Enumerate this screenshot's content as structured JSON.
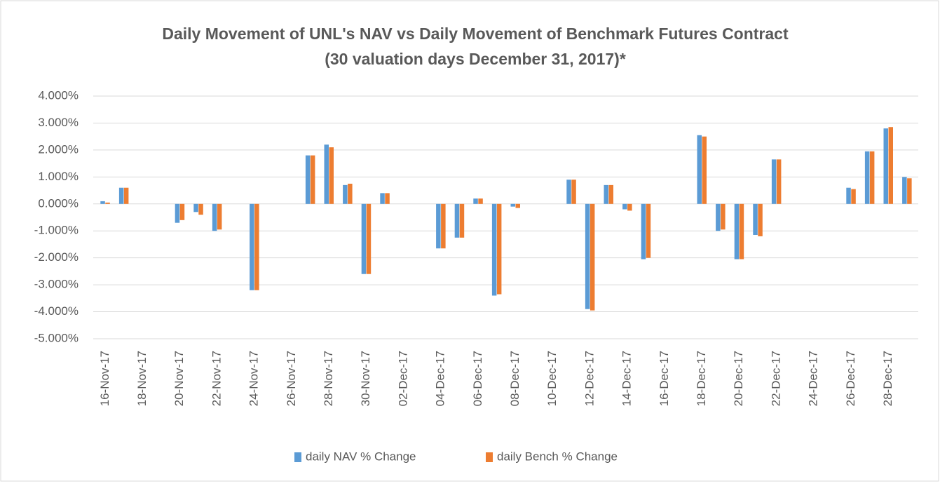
{
  "chart_data": {
    "type": "bar",
    "title": "Daily Movement of UNL's NAV vs Daily Movement of Benchmark Futures Contract",
    "subtitle": "(30 valuation days December 31, 2017)*",
    "categories": [
      "16-Nov-17",
      null,
      "18-Nov-17",
      null,
      "20-Nov-17",
      null,
      "22-Nov-17",
      null,
      "24-Nov-17",
      null,
      "26-Nov-17",
      null,
      "28-Nov-17",
      null,
      "30-Nov-17",
      null,
      "02-Dec-17",
      null,
      "04-Dec-17",
      null,
      "06-Dec-17",
      null,
      "08-Dec-17",
      null,
      "10-Dec-17",
      null,
      "12-Dec-17",
      null,
      "14-Dec-17",
      null,
      "16-Dec-17",
      null,
      "18-Dec-17",
      null,
      "20-Dec-17",
      null,
      "22-Dec-17",
      null,
      "24-Dec-17",
      null,
      "26-Dec-17",
      null,
      "28-Dec-17",
      null
    ],
    "series": [
      {
        "name": "daily NAV % Change",
        "color": "#5b9bd5",
        "values": [
          0.1,
          0.6,
          null,
          null,
          -0.7,
          -0.3,
          -1.0,
          null,
          -3.2,
          null,
          null,
          1.8,
          2.2,
          0.7,
          -2.6,
          0.4,
          null,
          null,
          -1.65,
          -1.25,
          0.2,
          -3.4,
          -0.1,
          null,
          null,
          0.9,
          -3.9,
          0.7,
          -0.2,
          -2.05,
          null,
          null,
          2.55,
          -1.0,
          -2.05,
          -1.15,
          1.65,
          null,
          null,
          null,
          0.6,
          1.95,
          2.8,
          1.0
        ]
      },
      {
        "name": "daily Bench % Change",
        "color": "#ed7d31",
        "values": [
          0.05,
          0.6,
          null,
          null,
          -0.6,
          -0.4,
          -0.95,
          null,
          -3.2,
          null,
          null,
          1.8,
          2.1,
          0.75,
          -2.6,
          0.4,
          null,
          null,
          -1.65,
          -1.25,
          0.2,
          -3.35,
          -0.15,
          null,
          null,
          0.9,
          -3.95,
          0.7,
          -0.25,
          -2.0,
          null,
          null,
          2.5,
          -0.95,
          -2.05,
          -1.2,
          1.65,
          null,
          null,
          null,
          0.55,
          1.95,
          2.85,
          0.95
        ]
      }
    ],
    "ylim": [
      -5,
      4
    ],
    "yticks": [
      {
        "value": -5,
        "label": "-5.000%"
      },
      {
        "value": -4,
        "label": "-4.000%"
      },
      {
        "value": -3,
        "label": "-3.000%"
      },
      {
        "value": -2,
        "label": "-2.000%"
      },
      {
        "value": -1,
        "label": "-1.000%"
      },
      {
        "value": 0,
        "label": "0.000%"
      },
      {
        "value": 1,
        "label": "1.000%"
      },
      {
        "value": 2,
        "label": "2.000%"
      },
      {
        "value": 3,
        "label": "3.000%"
      },
      {
        "value": 4,
        "label": "4.000%"
      }
    ],
    "grid": true,
    "legend": "bottom"
  }
}
